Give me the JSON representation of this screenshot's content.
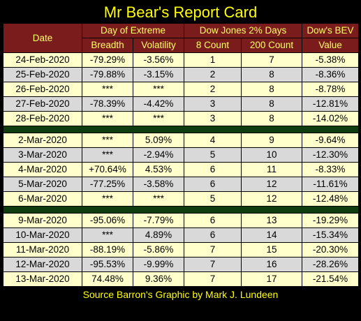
{
  "title": "Mr Bear's Report Card",
  "headers": {
    "date": "Date",
    "day_of_extreme": "Day of Extreme",
    "dow_2pct_days": "Dow Jones 2% Days",
    "dows_bev": "Dow's BEV",
    "breadth": "Breadth",
    "volatility": "Volatility",
    "count_8": "8 Count",
    "count_200": "200 Count",
    "value": "Value"
  },
  "groups": [
    [
      {
        "date": "24-Feb-2020",
        "breadth": "-79.29%",
        "volatility": "-3.56%",
        "c8": "1",
        "c200": "7",
        "bev": "-5.38%"
      },
      {
        "date": "25-Feb-2020",
        "breadth": "-79.88%",
        "volatility": "-3.15%",
        "c8": "2",
        "c200": "8",
        "bev": "-8.36%"
      },
      {
        "date": "26-Feb-2020",
        "breadth": "***",
        "volatility": "***",
        "c8": "2",
        "c200": "8",
        "bev": "-8.78%"
      },
      {
        "date": "27-Feb-2020",
        "breadth": "-78.39%",
        "volatility": "-4.42%",
        "c8": "3",
        "c200": "8",
        "bev": "-12.81%"
      },
      {
        "date": "28-Feb-2020",
        "breadth": "***",
        "volatility": "***",
        "c8": "3",
        "c200": "8",
        "bev": "-14.02%"
      }
    ],
    [
      {
        "date": "2-Mar-2020",
        "breadth": "***",
        "volatility": "5.09%",
        "c8": "4",
        "c200": "9",
        "bev": "-9.64%"
      },
      {
        "date": "3-Mar-2020",
        "breadth": "***",
        "volatility": "-2.94%",
        "c8": "5",
        "c200": "10",
        "bev": "-12.30%"
      },
      {
        "date": "4-Mar-2020",
        "breadth": "+70.64%",
        "volatility": "4.53%",
        "c8": "6",
        "c200": "11",
        "bev": "-8.33%"
      },
      {
        "date": "5-Mar-2020",
        "breadth": "-77.25%",
        "volatility": "-3.58%",
        "c8": "6",
        "c200": "12",
        "bev": "-11.61%"
      },
      {
        "date": "6-Mar-2020",
        "breadth": "***",
        "volatility": "***",
        "c8": "5",
        "c200": "12",
        "bev": "-12.48%"
      }
    ],
    [
      {
        "date": "9-Mar-2020",
        "breadth": "-95.06%",
        "volatility": "-7.79%",
        "c8": "6",
        "c200": "13",
        "bev": "-19.29%"
      },
      {
        "date": "10-Mar-2020",
        "breadth": "***",
        "volatility": "4.89%",
        "c8": "6",
        "c200": "14",
        "bev": "-15.34%"
      },
      {
        "date": "11-Mar-2020",
        "breadth": "-88.19%",
        "volatility": "-5.86%",
        "c8": "7",
        "c200": "15",
        "bev": "-20.30%"
      },
      {
        "date": "12-Mar-2020",
        "breadth": "-95.53%",
        "volatility": "-9.99%",
        "c8": "7",
        "c200": "16",
        "bev": "-28.26%"
      },
      {
        "date": "13-Mar-2020",
        "breadth": "74.48%",
        "volatility": "9.36%",
        "c8": "7",
        "c200": "17",
        "bev": "-21.54%"
      }
    ]
  ],
  "source": "Source Barron's  Graphic by Mark J. Lundeen",
  "colors": {
    "title": "#ffff00",
    "header_bg": "#7a1c1c",
    "header_text": "#ffff66",
    "row_light": "#ffffcc",
    "row_gray": "#d9d9d9",
    "separator": "#0f3d0f"
  }
}
